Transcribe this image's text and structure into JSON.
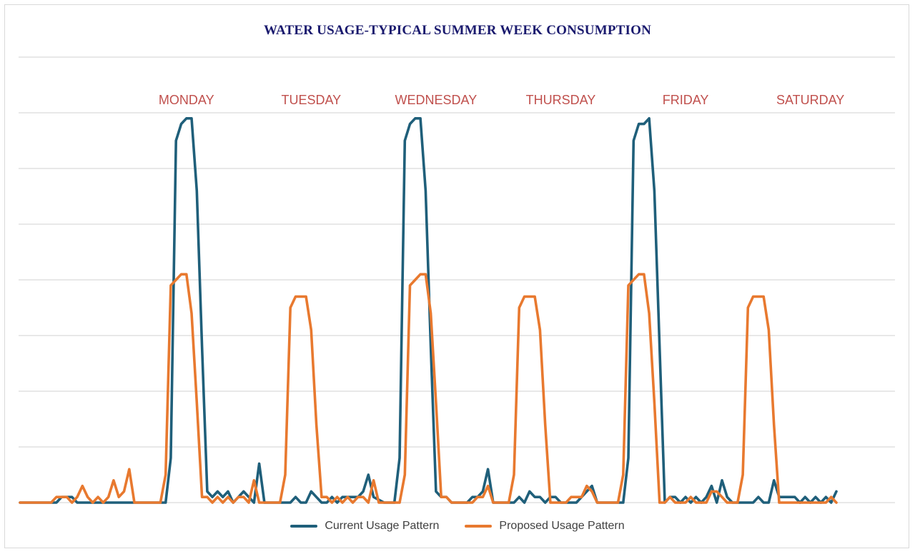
{
  "colors": {
    "current": "#1f5f7a",
    "proposed": "#e8792f",
    "day_label": "#c0504d",
    "title": "#1a1a6e",
    "grid": "#d9d9d9"
  },
  "chart_data": {
    "type": "line",
    "title": "WATER USAGE-TYPICAL SUMMER WEEK CONSUMPTION",
    "xlabel": "",
    "ylabel": "",
    "grid": true,
    "legend_position": "bottom",
    "x_range": [
      0,
      168
    ],
    "ylim": [
      0,
      8
    ],
    "day_labels": [
      {
        "label": "MONDAY",
        "x": 32
      },
      {
        "label": "TUESDAY",
        "x": 56
      },
      {
        "label": "WEDNESDAY",
        "x": 80
      },
      {
        "label": "THURSDAY",
        "x": 104
      },
      {
        "label": "FRIDAY",
        "x": 128
      },
      {
        "label": "SATURDAY",
        "x": 152
      }
    ],
    "series": [
      {
        "name": "Current Usage Pattern",
        "points": [
          [
            0,
            0
          ],
          [
            4,
            0
          ],
          [
            7,
            0
          ],
          [
            8,
            0.1
          ],
          [
            10,
            0.1
          ],
          [
            11,
            0
          ],
          [
            12,
            0
          ],
          [
            14,
            0
          ],
          [
            17,
            0
          ],
          [
            18,
            0
          ],
          [
            20,
            0
          ],
          [
            22,
            0
          ],
          [
            23,
            0
          ],
          [
            28,
            0
          ],
          [
            29,
            0.8
          ],
          [
            30,
            6.5
          ],
          [
            31,
            6.8
          ],
          [
            32,
            6.9
          ],
          [
            33,
            6.9
          ],
          [
            34,
            5.6
          ],
          [
            35,
            2.8
          ],
          [
            36,
            0.2
          ],
          [
            37,
            0.1
          ],
          [
            38,
            0.2
          ],
          [
            39,
            0.1
          ],
          [
            40,
            0.2
          ],
          [
            41,
            0
          ],
          [
            42,
            0.1
          ],
          [
            43,
            0.2
          ],
          [
            44,
            0.1
          ],
          [
            45,
            0
          ],
          [
            46,
            0.7
          ],
          [
            47,
            0
          ],
          [
            50,
            0
          ],
          [
            52,
            0
          ],
          [
            53,
            0.1
          ],
          [
            54,
            0
          ],
          [
            55,
            0
          ],
          [
            56,
            0.2
          ],
          [
            57,
            0.1
          ],
          [
            58,
            0
          ],
          [
            59,
            0
          ],
          [
            60,
            0.1
          ],
          [
            61,
            0
          ],
          [
            62,
            0.1
          ],
          [
            64,
            0.1
          ],
          [
            65,
            0.1
          ],
          [
            66,
            0.2
          ],
          [
            67,
            0.5
          ],
          [
            68,
            0.1
          ],
          [
            70,
            0
          ],
          [
            71,
            0
          ],
          [
            72,
            0
          ],
          [
            73,
            0.8
          ],
          [
            74,
            6.5
          ],
          [
            75,
            6.8
          ],
          [
            76,
            6.9
          ],
          [
            77,
            6.9
          ],
          [
            78,
            5.6
          ],
          [
            79,
            2.8
          ],
          [
            80,
            0.2
          ],
          [
            81,
            0.1
          ],
          [
            82,
            0.1
          ],
          [
            83,
            0
          ],
          [
            85,
            0
          ],
          [
            86,
            0
          ],
          [
            87,
            0.1
          ],
          [
            88,
            0.1
          ],
          [
            89,
            0.2
          ],
          [
            90,
            0.6
          ],
          [
            91,
            0
          ],
          [
            92,
            0
          ],
          [
            95,
            0
          ],
          [
            96,
            0.1
          ],
          [
            97,
            0
          ],
          [
            98,
            0.2
          ],
          [
            99,
            0.1
          ],
          [
            100,
            0.1
          ],
          [
            101,
            0
          ],
          [
            102,
            0.1
          ],
          [
            103,
            0.1
          ],
          [
            104,
            0
          ],
          [
            106,
            0
          ],
          [
            107,
            0
          ],
          [
            108,
            0.1
          ],
          [
            109,
            0.2
          ],
          [
            110,
            0.3
          ],
          [
            111,
            0
          ],
          [
            113,
            0
          ],
          [
            116,
            0
          ],
          [
            117,
            0.8
          ],
          [
            118,
            6.5
          ],
          [
            119,
            6.8
          ],
          [
            120,
            6.8
          ],
          [
            121,
            6.9
          ],
          [
            122,
            5.6
          ],
          [
            123,
            2.8
          ],
          [
            124,
            0
          ],
          [
            125,
            0.1
          ],
          [
            126,
            0.1
          ],
          [
            127,
            0
          ],
          [
            128,
            0.1
          ],
          [
            129,
            0
          ],
          [
            130,
            0.1
          ],
          [
            131,
            0
          ],
          [
            132,
            0.1
          ],
          [
            133,
            0.3
          ],
          [
            134,
            0
          ],
          [
            135,
            0.4
          ],
          [
            136,
            0.1
          ],
          [
            137,
            0
          ],
          [
            141,
            0
          ],
          [
            142,
            0.1
          ],
          [
            143,
            0
          ],
          [
            144,
            0
          ],
          [
            145,
            0.4
          ],
          [
            146,
            0.1
          ],
          [
            147,
            0.1
          ],
          [
            148,
            0.1
          ],
          [
            149,
            0.1
          ],
          [
            150,
            0
          ],
          [
            151,
            0.1
          ],
          [
            152,
            0
          ],
          [
            153,
            0.1
          ],
          [
            154,
            0
          ],
          [
            155,
            0.1
          ],
          [
            156,
            0
          ],
          [
            157,
            0.2
          ]
        ]
      },
      {
        "name": "Proposed Usage Pattern",
        "points": [
          [
            0,
            0
          ],
          [
            6,
            0
          ],
          [
            7,
            0.1
          ],
          [
            8,
            0.1
          ],
          [
            9,
            0.1
          ],
          [
            10,
            0
          ],
          [
            11,
            0.1
          ],
          [
            12,
            0.3
          ],
          [
            13,
            0.1
          ],
          [
            14,
            0
          ],
          [
            15,
            0.1
          ],
          [
            16,
            0
          ],
          [
            17,
            0.1
          ],
          [
            18,
            0.4
          ],
          [
            19,
            0.1
          ],
          [
            20,
            0.2
          ],
          [
            21,
            0.6
          ],
          [
            22,
            0
          ],
          [
            23,
            0
          ],
          [
            27,
            0
          ],
          [
            28,
            0.5
          ],
          [
            29,
            3.9
          ],
          [
            30,
            4.0
          ],
          [
            31,
            4.1
          ],
          [
            32,
            4.1
          ],
          [
            33,
            3.4
          ],
          [
            34,
            1.8
          ],
          [
            35,
            0.1
          ],
          [
            36,
            0.1
          ],
          [
            37,
            0
          ],
          [
            38,
            0.1
          ],
          [
            39,
            0
          ],
          [
            40,
            0.1
          ],
          [
            41,
            0
          ],
          [
            42,
            0.1
          ],
          [
            43,
            0.1
          ],
          [
            44,
            0
          ],
          [
            45,
            0.4
          ],
          [
            46,
            0
          ],
          [
            47,
            0
          ],
          [
            50,
            0
          ],
          [
            51,
            0.5
          ],
          [
            52,
            3.5
          ],
          [
            53,
            3.7
          ],
          [
            54,
            3.7
          ],
          [
            55,
            3.7
          ],
          [
            56,
            3.1
          ],
          [
            57,
            1.4
          ],
          [
            58,
            0.1
          ],
          [
            59,
            0.1
          ],
          [
            60,
            0
          ],
          [
            61,
            0.1
          ],
          [
            62,
            0
          ],
          [
            63,
            0.1
          ],
          [
            64,
            0
          ],
          [
            65,
            0.1
          ],
          [
            66,
            0.1
          ],
          [
            67,
            0
          ],
          [
            68,
            0.4
          ],
          [
            69,
            0
          ],
          [
            70,
            0
          ],
          [
            73,
            0
          ],
          [
            74,
            0.5
          ],
          [
            75,
            3.9
          ],
          [
            76,
            4.0
          ],
          [
            77,
            4.1
          ],
          [
            78,
            4.1
          ],
          [
            79,
            3.4
          ],
          [
            80,
            1.8
          ],
          [
            81,
            0.1
          ],
          [
            82,
            0.1
          ],
          [
            83,
            0
          ],
          [
            86,
            0
          ],
          [
            87,
            0
          ],
          [
            88,
            0.1
          ],
          [
            89,
            0.1
          ],
          [
            90,
            0.3
          ],
          [
            91,
            0
          ],
          [
            92,
            0
          ],
          [
            94,
            0
          ],
          [
            95,
            0.5
          ],
          [
            96,
            3.5
          ],
          [
            97,
            3.7
          ],
          [
            98,
            3.7
          ],
          [
            99,
            3.7
          ],
          [
            100,
            3.1
          ],
          [
            101,
            1.4
          ],
          [
            102,
            0
          ],
          [
            104,
            0
          ],
          [
            105,
            0
          ],
          [
            106,
            0.1
          ],
          [
            107,
            0.1
          ],
          [
            108,
            0.1
          ],
          [
            109,
            0.3
          ],
          [
            110,
            0.2
          ],
          [
            111,
            0
          ],
          [
            113,
            0
          ],
          [
            115,
            0
          ],
          [
            116,
            0.5
          ],
          [
            117,
            3.9
          ],
          [
            118,
            4.0
          ],
          [
            119,
            4.1
          ],
          [
            120,
            4.1
          ],
          [
            121,
            3.4
          ],
          [
            122,
            1.8
          ],
          [
            123,
            0
          ],
          [
            124,
            0
          ],
          [
            125,
            0.1
          ],
          [
            126,
            0
          ],
          [
            128,
            0
          ],
          [
            129,
            0.1
          ],
          [
            130,
            0
          ],
          [
            131,
            0
          ],
          [
            132,
            0
          ],
          [
            133,
            0.2
          ],
          [
            134,
            0.2
          ],
          [
            135,
            0.1
          ],
          [
            136,
            0
          ],
          [
            138,
            0
          ],
          [
            139,
            0.5
          ],
          [
            140,
            3.5
          ],
          [
            141,
            3.7
          ],
          [
            142,
            3.7
          ],
          [
            143,
            3.7
          ],
          [
            144,
            3.1
          ],
          [
            145,
            1.4
          ],
          [
            146,
            0
          ],
          [
            147,
            0
          ],
          [
            148,
            0
          ],
          [
            149,
            0
          ],
          [
            150,
            0
          ],
          [
            151,
            0
          ],
          [
            152,
            0
          ],
          [
            153,
            0
          ],
          [
            154,
            0
          ],
          [
            155,
            0
          ],
          [
            156,
            0.1
          ],
          [
            157,
            0
          ]
        ]
      }
    ]
  }
}
